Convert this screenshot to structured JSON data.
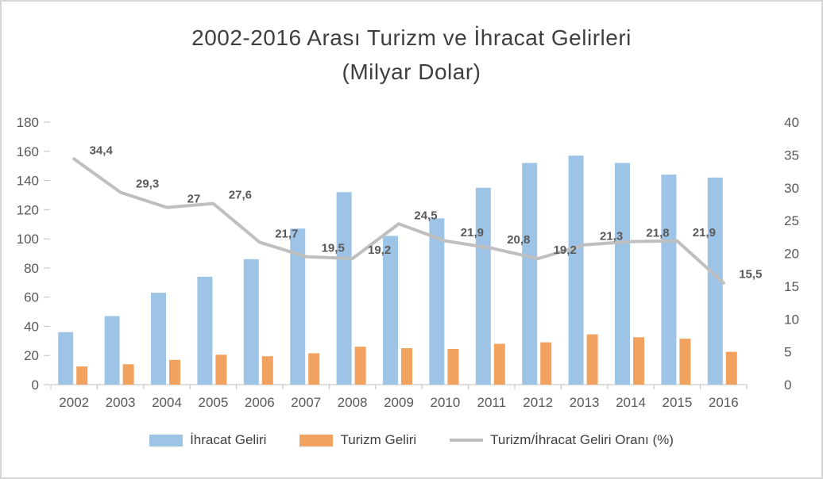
{
  "title": {
    "line1": "2002-2016 Arası Turizm ve İhracat Gelirleri",
    "line2": "(Milyar Dolar)"
  },
  "chart_data": {
    "type": "bar",
    "subtype": "combo-bar-line",
    "categories": [
      "2002",
      "2003",
      "2004",
      "2005",
      "2006",
      "2007",
      "2008",
      "2009",
      "2010",
      "2011",
      "2012",
      "2013",
      "2014",
      "2015",
      "2016"
    ],
    "series": [
      {
        "name": "İhracat Geliri",
        "type": "bar",
        "axis": "left",
        "color": "#9DC3E6",
        "values": [
          36,
          47,
          63,
          74,
          86,
          107,
          132,
          102,
          114,
          135,
          152,
          157,
          152,
          144,
          142
        ]
      },
      {
        "name": "Turizm Geliri",
        "type": "bar",
        "axis": "left",
        "color": "#F2A25F",
        "values": [
          12.5,
          14,
          17,
          20.5,
          19.5,
          21.5,
          26,
          25,
          24.5,
          28,
          29,
          34.5,
          32.5,
          31.5,
          22.5
        ]
      },
      {
        "name": "Turizm/İhracat Geliri Oranı (%)",
        "type": "line",
        "axis": "right",
        "color": "#BFBFBF",
        "values": [
          34.4,
          29.3,
          27,
          27.6,
          21.7,
          19.5,
          19.2,
          24.5,
          21.9,
          20.8,
          19.2,
          21.3,
          21.8,
          21.9,
          15.5
        ],
        "labels": [
          "34,4",
          "29,3",
          "27",
          "27,6",
          "21,7",
          "19,5",
          "19,2",
          "24,5",
          "21,9",
          "20,8",
          "19,2",
          "21,3",
          "21,8",
          "21,9",
          "15,5"
        ]
      }
    ],
    "axes": {
      "left": {
        "min": 0,
        "max": 180,
        "ticks": [
          "0",
          "20",
          "40",
          "60",
          "80",
          "100",
          "120",
          "140",
          "160",
          "180"
        ]
      },
      "right": {
        "min": 0,
        "max": 40,
        "ticks": [
          "0",
          "5",
          "10",
          "15",
          "20",
          "25",
          "30",
          "35",
          "40"
        ]
      }
    },
    "legend": [
      "İhracat Geliri",
      "Turizm Geliri",
      "Turizm/İhracat Geliri Oranı (%)"
    ],
    "grid": false,
    "legend_position": "bottom"
  }
}
